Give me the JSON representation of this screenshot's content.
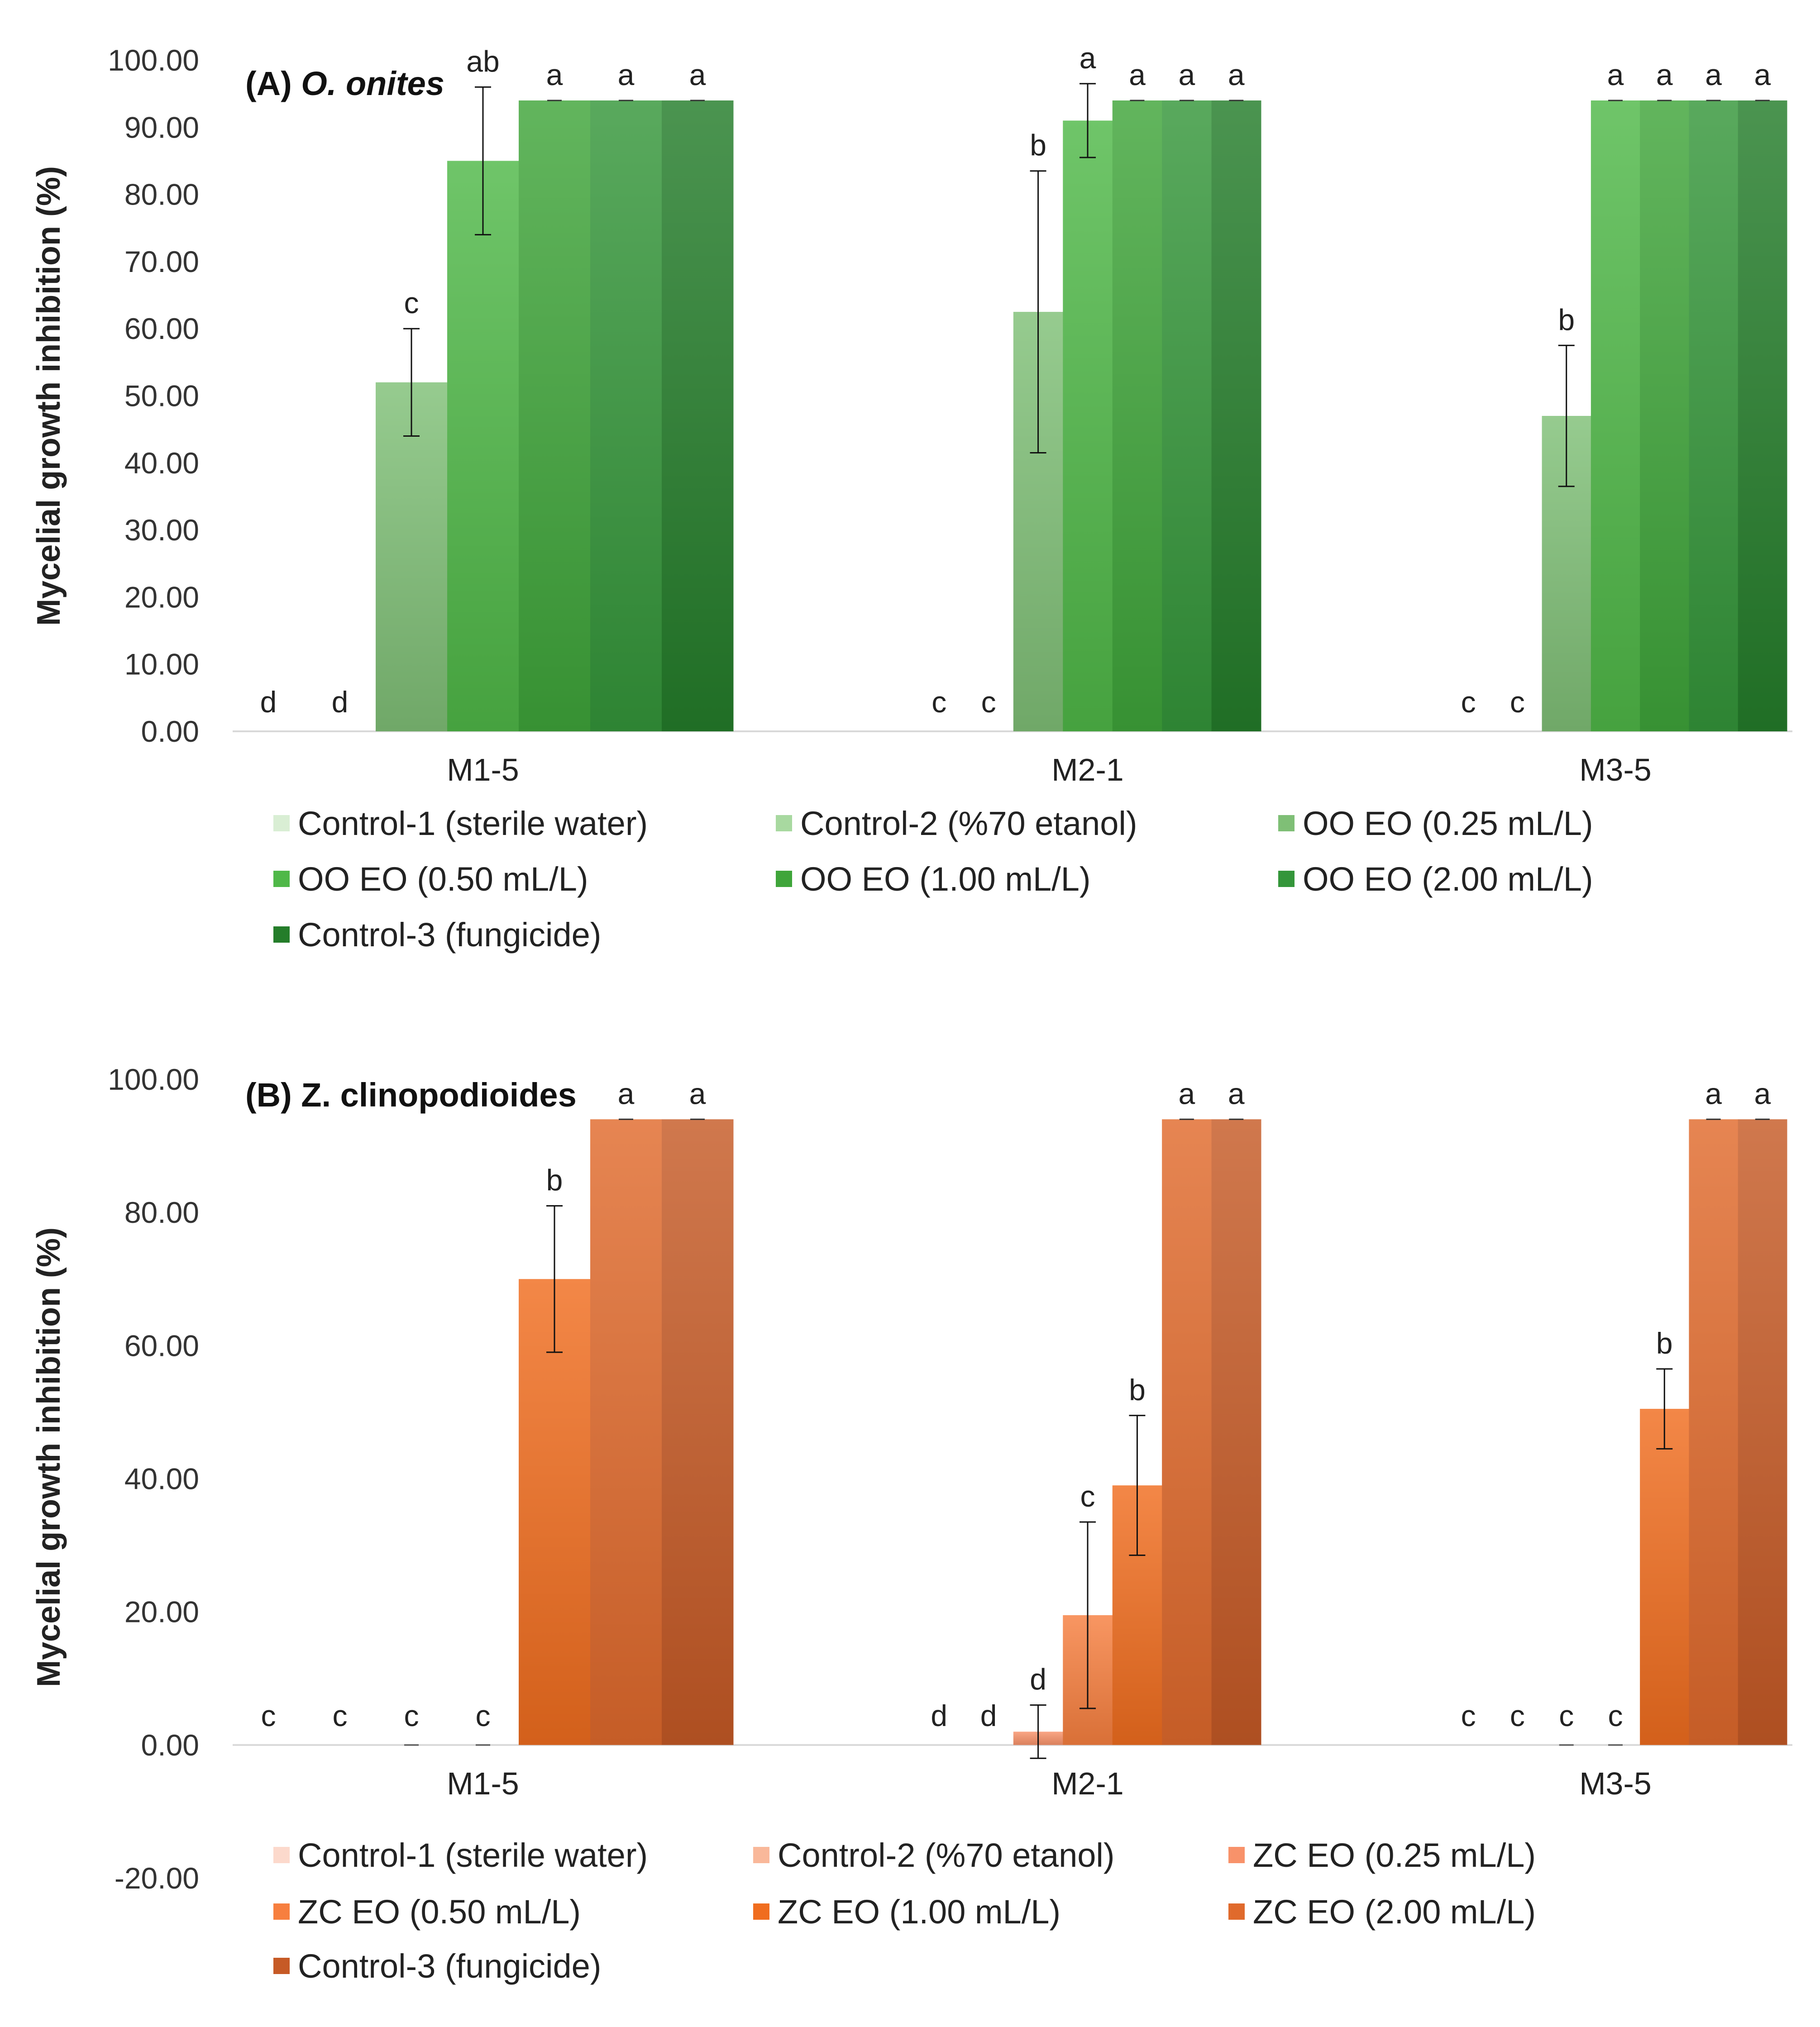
{
  "chart_data": [
    {
      "type": "bar",
      "panel_label": "(A) ",
      "title": "O. onites",
      "xlabel": "",
      "ylabel": "Mycelial growth inhibition (%)",
      "ylim": [
        0,
        100
      ],
      "ytick_step": 10,
      "yticks": [
        "0.00",
        "10.00",
        "20.00",
        "30.00",
        "40.00",
        "50.00",
        "60.00",
        "70.00",
        "80.00",
        "90.00",
        "100.00"
      ],
      "grid": false,
      "legend_position": "bottom",
      "categories": [
        "M1-5",
        "M2-1",
        "M3-5"
      ],
      "series": [
        {
          "name": "Control-1 (sterile water)",
          "color": "#d9eed4",
          "values": [
            0,
            0,
            0
          ],
          "errors": [
            0,
            0,
            0
          ],
          "letters": [
            "d",
            "c",
            "c"
          ]
        },
        {
          "name": "Control-2 (%70 etanol)",
          "color": "#a8d9a0",
          "values": [
            0,
            0,
            0
          ],
          "errors": [
            0,
            0,
            0
          ],
          "letters": [
            "d",
            "c",
            "c"
          ]
        },
        {
          "name": "OO EO (0.25 mL/L)",
          "color": "#7fbf76",
          "values": [
            52,
            62.5,
            47
          ],
          "errors": [
            8,
            21,
            10.5
          ],
          "letters": [
            "c",
            "b",
            "b"
          ]
        },
        {
          "name": "OO EO (0.50 mL/L)",
          "color": "#4fb848",
          "values": [
            85,
            91,
            94
          ],
          "errors": [
            11,
            5.5,
            0
          ],
          "letters": [
            "ab",
            "a",
            "a"
          ]
        },
        {
          "name": "OO EO (1.00 mL/L)",
          "color": "#3fa53a",
          "values": [
            94,
            94,
            94
          ],
          "errors": [
            0,
            0,
            0
          ],
          "letters": [
            "a",
            "a",
            "a"
          ]
        },
        {
          "name": "OO EO (2.00 mL/L)",
          "color": "#34963a",
          "values": [
            94,
            94,
            94
          ],
          "errors": [
            0,
            0,
            0
          ],
          "letters": [
            "a",
            "a",
            "a"
          ]
        },
        {
          "name": "Control-3 (fungicide)",
          "color": "#247d2a",
          "values": [
            94,
            94,
            94
          ],
          "errors": [
            0,
            0,
            0
          ],
          "letters": [
            "a",
            "a",
            "a"
          ]
        }
      ]
    },
    {
      "type": "bar",
      "panel_label": "(B) ",
      "title": "Z. clinopodioides",
      "xlabel": "",
      "ylabel": "Mycelial growth inhibition (%)",
      "ylim": [
        -20,
        100
      ],
      "ytick_step": 20,
      "yticks": [
        "-20.00",
        "0.00",
        "20.00",
        "40.00",
        "60.00",
        "80.00",
        "100.00"
      ],
      "grid": false,
      "legend_position": "bottom",
      "categories": [
        "M1-5",
        "M2-1",
        "M3-5"
      ],
      "series": [
        {
          "name": "Control-1 (sterile water)",
          "color": "#fcd9cc",
          "values": [
            0,
            0,
            0
          ],
          "errors": [
            0,
            0,
            0
          ],
          "letters": [
            "c",
            "d",
            "c"
          ]
        },
        {
          "name": "Control-2 (%70 etanol)",
          "color": "#f9b89a",
          "values": [
            0,
            0,
            0
          ],
          "errors": [
            0,
            0,
            0
          ],
          "letters": [
            "c",
            "d",
            "c"
          ]
        },
        {
          "name": "ZC EO (0.25 mL/L)",
          "color": "#f8926a",
          "values": [
            0,
            2,
            0
          ],
          "errors": [
            0,
            4,
            0
          ],
          "letters": [
            "c",
            "d",
            "c"
          ]
        },
        {
          "name": "ZC EO (0.50 mL/L)",
          "color": "#f77f3f",
          "values": [
            0,
            19.5,
            0
          ],
          "errors": [
            0,
            14,
            0
          ],
          "letters": [
            "c",
            "c",
            "c"
          ]
        },
        {
          "name": "ZC EO (1.00 mL/L)",
          "color": "#f06d1f",
          "values": [
            70,
            39,
            50.5
          ],
          "errors": [
            11,
            10.5,
            6
          ],
          "letters": [
            "b",
            "b",
            "b"
          ]
        },
        {
          "name": "ZC EO (2.00 mL/L)",
          "color": "#e06a2c",
          "values": [
            94,
            94,
            94
          ],
          "errors": [
            0,
            0,
            0
          ],
          "letters": [
            "a",
            "a",
            "a"
          ]
        },
        {
          "name": "Control-3 (fungicide)",
          "color": "#c65a26",
          "values": [
            94,
            94,
            94
          ],
          "errors": [
            0,
            0,
            0
          ],
          "letters": [
            "a",
            "a",
            "a"
          ]
        }
      ]
    }
  ]
}
